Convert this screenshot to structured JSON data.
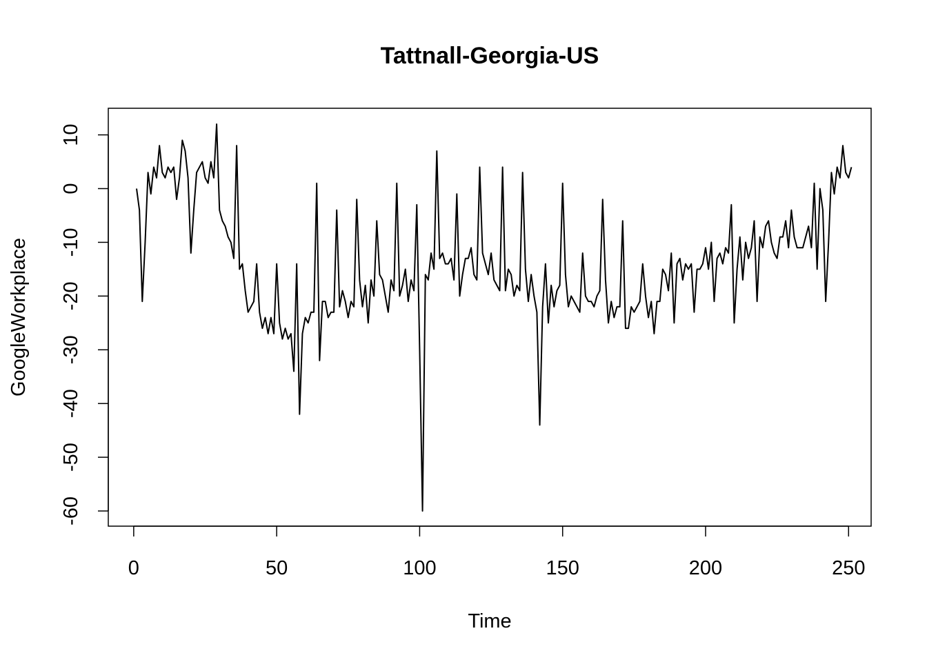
{
  "chart_data": {
    "type": "line",
    "title": "Tattnall-Georgia-US",
    "xlabel": "Time",
    "ylabel": "GoogleWorkplace",
    "xlim": [
      1,
      248
    ],
    "ylim": [
      -60,
      12
    ],
    "x_ticks": [
      0,
      50,
      100,
      150,
      200,
      250
    ],
    "y_ticks": [
      -60,
      -50,
      -40,
      -30,
      -20,
      -10,
      0,
      10
    ],
    "x_tick_labels": [
      "0",
      "50",
      "100",
      "150",
      "200",
      "250"
    ],
    "y_tick_labels": [
      "-60",
      "-50",
      "-40",
      "-30",
      "-20",
      "-10",
      "0",
      "10"
    ],
    "grid": false,
    "line_color": "#000000",
    "series": [
      {
        "x_start": 1,
        "values": [
          0,
          -4,
          -21,
          -10,
          3,
          -1,
          4,
          2,
          8,
          3,
          2,
          4,
          3,
          4,
          -2,
          2,
          9,
          7,
          2,
          -12,
          -4,
          3,
          4,
          5,
          2,
          1,
          5,
          2,
          12,
          -4,
          -6,
          -7,
          -9,
          -10,
          -13,
          8,
          -15,
          -14,
          -19,
          -23,
          -22,
          -21,
          -14,
          -23,
          -26,
          -24,
          -27,
          -24,
          -27,
          -14,
          -25,
          -28,
          -26,
          -28,
          -27,
          -34,
          -14,
          -42,
          -27,
          -24,
          -25,
          -23,
          -23,
          1,
          -32,
          -21,
          -21,
          -24,
          -23,
          -23,
          -4,
          -22,
          -19,
          -21,
          -24,
          -21,
          -22,
          -2,
          -17,
          -22,
          -18,
          -25,
          -17,
          -20,
          -6,
          -16,
          -17,
          -20,
          -23,
          -17,
          -19,
          1,
          -20,
          -18,
          -15,
          -21,
          -17,
          -19,
          -3,
          -30,
          -60,
          -16,
          -17,
          -12,
          -15,
          7,
          -13,
          -12,
          -14,
          -14,
          -13,
          -17,
          -1,
          -20,
          -16,
          -13,
          -13,
          -11,
          -16,
          -17,
          4,
          -12,
          -14,
          -16,
          -12,
          -17,
          -18,
          -19,
          4,
          -19,
          -15,
          -16,
          -20,
          -18,
          -19,
          3,
          -15,
          -21,
          -16,
          -20,
          -23,
          -44,
          -22,
          -14,
          -25,
          -18,
          -22,
          -19,
          -18,
          1,
          -16,
          -22,
          -20,
          -21,
          -22,
          -23,
          -12,
          -20,
          -21,
          -21,
          -22,
          -20,
          -19,
          -2,
          -17,
          -25,
          -21,
          -24,
          -22,
          -22,
          -6,
          -26,
          -26,
          -22,
          -23,
          -22,
          -21,
          -14,
          -20,
          -24,
          -21,
          -27,
          -21,
          -21,
          -15,
          -16,
          -19,
          -12,
          -25,
          -14,
          -13,
          -17,
          -14,
          -15,
          -14,
          -23,
          -15,
          -15,
          -14,
          -11,
          -15,
          -10,
          -21,
          -13,
          -12,
          -14,
          -11,
          -12,
          -3,
          -25,
          -15,
          -9,
          -17,
          -10,
          -13,
          -11,
          -6,
          -21,
          -9,
          -11,
          -7,
          -6,
          -10,
          -12,
          -13,
          -9,
          -9,
          -6,
          -11,
          -4,
          -9,
          -11,
          -11,
          -11,
          -9,
          -7,
          -11,
          1,
          -15,
          0,
          -4,
          -21,
          -10,
          3,
          -1,
          4,
          2,
          8,
          3,
          2,
          4
        ]
      }
    ]
  }
}
